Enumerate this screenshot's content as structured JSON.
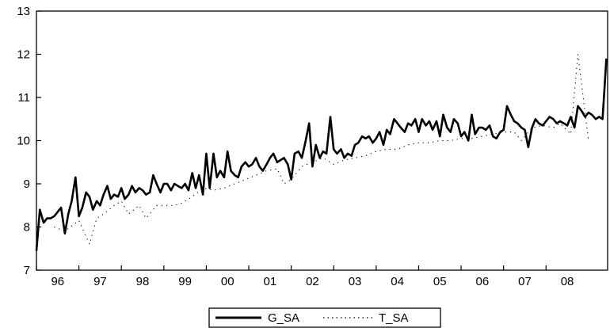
{
  "chart_data": {
    "type": "line",
    "title": "",
    "xlabel": "",
    "ylabel": "",
    "x_range": [
      1995.5,
      2008.95
    ],
    "ylim": [
      7,
      13
    ],
    "y_ticks": [
      7,
      8,
      9,
      10,
      11,
      12,
      13
    ],
    "x_ticks": [
      {
        "label": "96",
        "value": 1996.0
      },
      {
        "label": "97",
        "value": 1997.0
      },
      {
        "label": "98",
        "value": 1998.0
      },
      {
        "label": "99",
        "value": 1999.0
      },
      {
        "label": "00",
        "value": 2000.0
      },
      {
        "label": "01",
        "value": 2001.0
      },
      {
        "label": "02",
        "value": 2002.0
      },
      {
        "label": "03",
        "value": 2003.0
      },
      {
        "label": "04",
        "value": 2004.0
      },
      {
        "label": "05",
        "value": 2005.0
      },
      {
        "label": "06",
        "value": 2006.0
      },
      {
        "label": "07",
        "value": 2007.0
      },
      {
        "label": "08",
        "value": 2008.0
      }
    ],
    "grid": false,
    "legend_position": "bottom-center",
    "series": [
      {
        "name": "G_SA",
        "style": "solid",
        "color": "#000000",
        "points": [
          [
            1995.5,
            7.45
          ],
          [
            1995.58,
            8.4
          ],
          [
            1995.67,
            8.1
          ],
          [
            1995.75,
            8.2
          ],
          [
            1995.83,
            8.2
          ],
          [
            1995.92,
            8.25
          ],
          [
            1996.0,
            8.35
          ],
          [
            1996.08,
            8.45
          ],
          [
            1996.17,
            7.85
          ],
          [
            1996.25,
            8.3
          ],
          [
            1996.33,
            8.6
          ],
          [
            1996.42,
            9.15
          ],
          [
            1996.5,
            8.25
          ],
          [
            1996.58,
            8.45
          ],
          [
            1996.67,
            8.8
          ],
          [
            1996.75,
            8.7
          ],
          [
            1996.83,
            8.4
          ],
          [
            1996.92,
            8.6
          ],
          [
            1997.0,
            8.5
          ],
          [
            1997.08,
            8.75
          ],
          [
            1997.17,
            8.95
          ],
          [
            1997.25,
            8.65
          ],
          [
            1997.33,
            8.75
          ],
          [
            1997.42,
            8.7
          ],
          [
            1997.5,
            8.9
          ],
          [
            1997.58,
            8.65
          ],
          [
            1997.67,
            8.75
          ],
          [
            1997.75,
            8.95
          ],
          [
            1997.83,
            8.8
          ],
          [
            1997.92,
            8.9
          ],
          [
            1998.0,
            8.85
          ],
          [
            1998.08,
            8.75
          ],
          [
            1998.17,
            8.8
          ],
          [
            1998.25,
            9.2
          ],
          [
            1998.33,
            9.0
          ],
          [
            1998.42,
            8.8
          ],
          [
            1998.5,
            9.0
          ],
          [
            1998.58,
            9.0
          ],
          [
            1998.67,
            8.85
          ],
          [
            1998.75,
            9.0
          ],
          [
            1998.83,
            8.95
          ],
          [
            1998.92,
            8.9
          ],
          [
            1999.0,
            9.0
          ],
          [
            1999.08,
            8.85
          ],
          [
            1999.17,
            9.25
          ],
          [
            1999.25,
            8.9
          ],
          [
            1999.33,
            9.2
          ],
          [
            1999.42,
            8.75
          ],
          [
            1999.5,
            9.7
          ],
          [
            1999.58,
            8.9
          ],
          [
            1999.67,
            9.7
          ],
          [
            1999.75,
            9.15
          ],
          [
            1999.83,
            9.3
          ],
          [
            1999.92,
            9.15
          ],
          [
            2000.0,
            9.75
          ],
          [
            2000.08,
            9.3
          ],
          [
            2000.17,
            9.2
          ],
          [
            2000.25,
            9.15
          ],
          [
            2000.33,
            9.4
          ],
          [
            2000.42,
            9.5
          ],
          [
            2000.5,
            9.4
          ],
          [
            2000.58,
            9.45
          ],
          [
            2000.67,
            9.6
          ],
          [
            2000.75,
            9.4
          ],
          [
            2000.83,
            9.3
          ],
          [
            2000.92,
            9.45
          ],
          [
            2001.0,
            9.6
          ],
          [
            2001.08,
            9.7
          ],
          [
            2001.17,
            9.5
          ],
          [
            2001.25,
            9.55
          ],
          [
            2001.33,
            9.6
          ],
          [
            2001.42,
            9.45
          ],
          [
            2001.5,
            9.1
          ],
          [
            2001.58,
            9.7
          ],
          [
            2001.67,
            9.75
          ],
          [
            2001.75,
            9.6
          ],
          [
            2001.83,
            9.95
          ],
          [
            2001.92,
            10.4
          ],
          [
            2002.0,
            9.4
          ],
          [
            2002.08,
            9.9
          ],
          [
            2002.17,
            9.6
          ],
          [
            2002.25,
            9.75
          ],
          [
            2002.33,
            9.7
          ],
          [
            2002.42,
            10.55
          ],
          [
            2002.5,
            9.8
          ],
          [
            2002.58,
            9.7
          ],
          [
            2002.67,
            9.8
          ],
          [
            2002.75,
            9.6
          ],
          [
            2002.83,
            9.7
          ],
          [
            2002.92,
            9.65
          ],
          [
            2003.0,
            9.9
          ],
          [
            2003.08,
            9.95
          ],
          [
            2003.17,
            10.1
          ],
          [
            2003.25,
            10.05
          ],
          [
            2003.33,
            10.1
          ],
          [
            2003.42,
            9.95
          ],
          [
            2003.5,
            10.05
          ],
          [
            2003.58,
            10.2
          ],
          [
            2003.67,
            9.9
          ],
          [
            2003.75,
            10.25
          ],
          [
            2003.83,
            10.15
          ],
          [
            2003.92,
            10.5
          ],
          [
            2004.0,
            10.4
          ],
          [
            2004.08,
            10.3
          ],
          [
            2004.17,
            10.2
          ],
          [
            2004.25,
            10.4
          ],
          [
            2004.33,
            10.35
          ],
          [
            2004.42,
            10.5
          ],
          [
            2004.5,
            10.2
          ],
          [
            2004.58,
            10.5
          ],
          [
            2004.67,
            10.35
          ],
          [
            2004.75,
            10.45
          ],
          [
            2004.83,
            10.25
          ],
          [
            2004.92,
            10.45
          ],
          [
            2005.0,
            10.1
          ],
          [
            2005.08,
            10.6
          ],
          [
            2005.17,
            10.3
          ],
          [
            2005.25,
            10.2
          ],
          [
            2005.33,
            10.5
          ],
          [
            2005.42,
            10.4
          ],
          [
            2005.5,
            10.1
          ],
          [
            2005.58,
            10.2
          ],
          [
            2005.67,
            10.0
          ],
          [
            2005.75,
            10.6
          ],
          [
            2005.83,
            10.15
          ],
          [
            2005.92,
            10.3
          ],
          [
            2006.0,
            10.3
          ],
          [
            2006.08,
            10.25
          ],
          [
            2006.17,
            10.35
          ],
          [
            2006.25,
            10.1
          ],
          [
            2006.33,
            10.05
          ],
          [
            2006.42,
            10.2
          ],
          [
            2006.5,
            10.25
          ],
          [
            2006.58,
            10.8
          ],
          [
            2006.67,
            10.6
          ],
          [
            2006.75,
            10.45
          ],
          [
            2006.83,
            10.4
          ],
          [
            2006.92,
            10.3
          ],
          [
            2007.0,
            10.25
          ],
          [
            2007.08,
            9.85
          ],
          [
            2007.17,
            10.3
          ],
          [
            2007.25,
            10.5
          ],
          [
            2007.33,
            10.4
          ],
          [
            2007.42,
            10.35
          ],
          [
            2007.5,
            10.45
          ],
          [
            2007.58,
            10.55
          ],
          [
            2007.67,
            10.5
          ],
          [
            2007.75,
            10.4
          ],
          [
            2007.83,
            10.45
          ],
          [
            2007.92,
            10.4
          ],
          [
            2008.0,
            10.35
          ],
          [
            2008.08,
            10.55
          ],
          [
            2008.17,
            10.3
          ],
          [
            2008.25,
            10.8
          ],
          [
            2008.33,
            10.7
          ],
          [
            2008.42,
            10.55
          ],
          [
            2008.5,
            10.65
          ],
          [
            2008.58,
            10.6
          ],
          [
            2008.67,
            10.5
          ],
          [
            2008.75,
            10.55
          ],
          [
            2008.83,
            10.5
          ],
          [
            2008.92,
            11.9
          ]
        ]
      },
      {
        "name": "T_SA",
        "style": "dotted",
        "color": "#000000",
        "points": [
          [
            1995.92,
            8.0
          ],
          [
            1996.17,
            7.9
          ],
          [
            1996.5,
            8.15
          ],
          [
            1996.75,
            7.6
          ],
          [
            1996.92,
            8.2
          ],
          [
            1997.08,
            8.3
          ],
          [
            1997.33,
            8.5
          ],
          [
            1997.5,
            8.6
          ],
          [
            1997.67,
            8.3
          ],
          [
            1997.92,
            8.5
          ],
          [
            1998.08,
            8.2
          ],
          [
            1998.33,
            8.5
          ],
          [
            1998.5,
            8.5
          ],
          [
            1998.75,
            8.5
          ],
          [
            1998.92,
            8.55
          ],
          [
            1999.17,
            8.7
          ],
          [
            1999.42,
            8.9
          ],
          [
            1999.67,
            8.85
          ],
          [
            1999.92,
            8.9
          ],
          [
            2000.17,
            9.0
          ],
          [
            2000.42,
            9.1
          ],
          [
            2000.67,
            9.2
          ],
          [
            2000.92,
            9.3
          ],
          [
            2001.17,
            9.35
          ],
          [
            2001.33,
            9.0
          ],
          [
            2001.5,
            9.1
          ],
          [
            2001.75,
            9.4
          ],
          [
            2002.0,
            9.5
          ],
          [
            2002.25,
            9.6
          ],
          [
            2002.5,
            9.45
          ],
          [
            2002.75,
            9.55
          ],
          [
            2003.0,
            9.6
          ],
          [
            2003.25,
            9.65
          ],
          [
            2003.5,
            9.75
          ],
          [
            2003.75,
            9.8
          ],
          [
            2004.0,
            9.8
          ],
          [
            2004.25,
            9.9
          ],
          [
            2004.5,
            9.95
          ],
          [
            2004.75,
            9.95
          ],
          [
            2005.0,
            10.0
          ],
          [
            2005.25,
            10.0
          ],
          [
            2005.5,
            10.05
          ],
          [
            2005.75,
            10.05
          ],
          [
            2006.0,
            10.1
          ],
          [
            2006.25,
            10.15
          ],
          [
            2006.5,
            10.2
          ],
          [
            2006.75,
            10.2
          ],
          [
            2006.92,
            10.0
          ],
          [
            2007.17,
            10.3
          ],
          [
            2007.42,
            10.35
          ],
          [
            2007.67,
            10.3
          ],
          [
            2007.83,
            10.4
          ],
          [
            2008.08,
            10.15
          ],
          [
            2008.25,
            12.0
          ],
          [
            2008.5,
            10.0
          ]
        ]
      }
    ]
  }
}
